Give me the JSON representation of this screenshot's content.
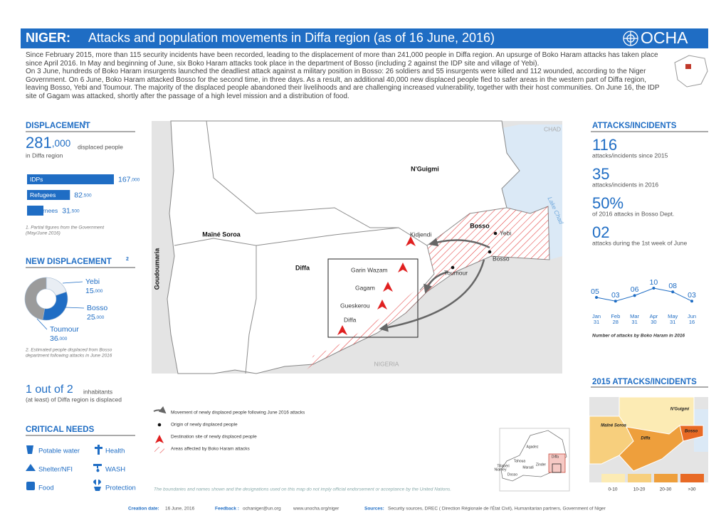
{
  "header": {
    "country": "NIGER:",
    "title": "Attacks and population movements in Diffa region (as of 16 June, 2016)",
    "logo": "OCHA"
  },
  "intro": [
    "Since February 2015, more than 115 security incidents have been recorded, leading to the displacement of more than 241,000 people in Diffa region. An upsurge of Boko Haram attacks has taken place since April 2016.  In May and beginning of June, six Boko Haram attacks took place in the department of Bosso (including 2 against the IDP site and village of Yebi).",
    "On 3 June, hundreds of Boko Haram insurgents launched the deadliest attack against a military position in Bosso:  26 soldiers and 55 insurgents were killed and 112 wounded, according to the Niger Government. On 6 June, Boko Haram attacked Bosso for the second time, in three days. As a result, an additional 40,000 new displaced people fled to safer areas in the western part of Diffa region, leaving Bosso, Yebi and Toumour. The majority of the displaced people abandoned their livelihoods and are challenging increased vulnerability, together with their host communities. On June 16, the IDP site of Gagam was attacked, shortly after the passage of a high level mission and a distribution of food."
  ],
  "displacement": {
    "title": "DISPLACEMENT",
    "note_mark": "1",
    "total": "281,000",
    "total_unit": "displaced people",
    "total_sub": "in Diffa region",
    "bars": {
      "categories": [
        "IDPs",
        "Refugees",
        "Returnees"
      ],
      "values": [
        167000,
        82500,
        31500
      ],
      "value_labels": [
        "167,000",
        "82,500",
        "31,500"
      ],
      "color": "#1f6dc4"
    },
    "footnote": [
      "1. Partial figures from the Government",
      "(May/June 2016)"
    ]
  },
  "new_displacement": {
    "title": "NEW DISPLACEMENT",
    "note_mark": "2",
    "categories": [
      "Yebi",
      "Bosso",
      "Toumour"
    ],
    "values": [
      15000,
      25000,
      36000
    ],
    "value_labels": [
      "15,000",
      "25,000",
      "36,000"
    ],
    "colors": [
      "#e9eef4",
      "#1f6dc4",
      "#9b9b9b"
    ],
    "footnote": [
      "2.  Estimated  people  displaced  from  Bosso",
      "department following attacks in June 2016"
    ]
  },
  "ratio": {
    "main": "1 out of 2",
    "unit": "inhabitants",
    "sub": "(at least) of Diffa region is displaced"
  },
  "critical_needs": {
    "title": "CRITICAL NEEDS",
    "items": [
      "Potable water",
      "Health",
      "Shelter/NFI",
      "WASH",
      "Food",
      "Protection"
    ]
  },
  "map": {
    "labels": {
      "chad": "CHAD",
      "nigeria": "NIGERIA",
      "lake": "Lake Chad",
      "goudoumaria": "Goudoumaria",
      "nguigmi": "N'Guigmi",
      "maine_soroa": "Maïné Soroa",
      "diffa_dept": "Diffa",
      "bosso_dept": "Bosso"
    },
    "places": [
      "Kidjendi",
      "Yebi",
      "Bosso",
      "Toumour",
      "Garin Wazam",
      "Gagam",
      "Gueskerou",
      "Diffa"
    ],
    "legend": [
      "Movement of newly displaced people following June 2016 attacks",
      "Origin of newly displaced people",
      "Destination site of newly displaced people",
      "Areas affected by Boko Haram attacks"
    ],
    "disclaimer": "The boundaries and names shown and the designations used on this map do not imply official endorsement or acceptance by the United Nations.",
    "inset": [
      "Agadez",
      "Tahoua",
      "Tillabéri",
      "Maradi",
      "Zinder",
      "Niamey",
      "Dosso",
      "Diffa"
    ]
  },
  "attacks": {
    "title": "ATTACKS/INCIDENTS",
    "stats": [
      {
        "value": "116",
        "label": "attacks/incidents since 2015"
      },
      {
        "value": "35",
        "label": "attacks/incidents in 2016"
      },
      {
        "value": "50%",
        "label": "of 2016 attacks in Bosso Dept."
      },
      {
        "value": "02",
        "label": "attacks during the 1st week of June"
      }
    ]
  },
  "monthly_attacks": {
    "type": "line",
    "categories": [
      "Jan",
      "Feb",
      "Mar",
      "Apr",
      "May",
      "Jun"
    ],
    "days": [
      "31",
      "28",
      "31",
      "30",
      "31",
      "16"
    ],
    "values": [
      5,
      3,
      6,
      10,
      8,
      3
    ],
    "value_labels": [
      "05",
      "03",
      "06",
      "10",
      "08",
      "03"
    ],
    "color": "#1f6dc4",
    "caption": "Number of attacks by Boko Haram in 2016"
  },
  "attacks_2015": {
    "title": "2015 ATTACKS/INCIDENTS",
    "labels": [
      "N'Guigmi",
      "Maïné Soroa",
      "Bosso",
      "Diffa"
    ],
    "legend": [
      "0-10",
      "10-20",
      "20-30",
      ">30"
    ],
    "colors": [
      "#fcebb4",
      "#f7cf7d",
      "#ee9f3c",
      "#e86a25"
    ]
  },
  "footer": {
    "creation_label": "Creation date:",
    "creation": "16 June, 2016",
    "feedback_label": "Feedback :",
    "email": "ochaniger@un.org",
    "website": "www.unocha.org/niger",
    "sources_label": "Sources:",
    "sources": "Security sources, DREC ( Direction Régionale de l'État Civil), Humanitarian partners, Government of Niger"
  }
}
